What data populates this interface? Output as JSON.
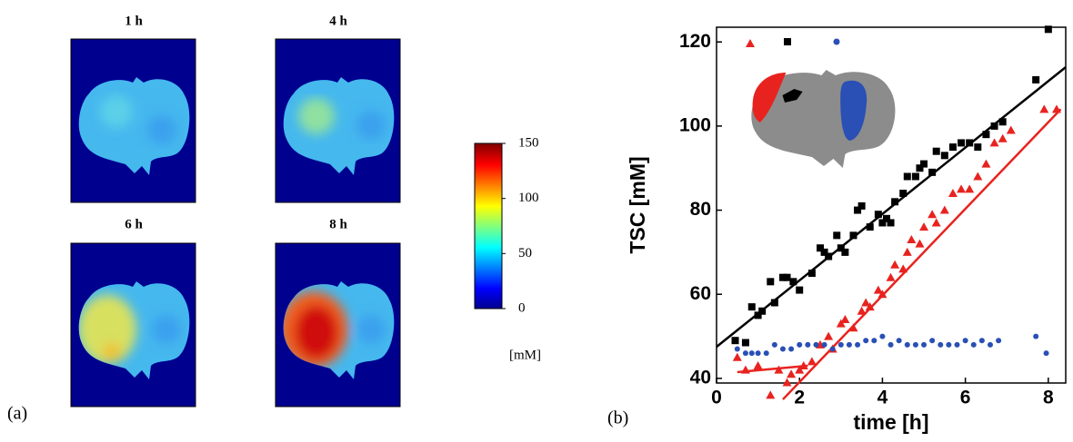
{
  "panel_a": {
    "label": "(a)",
    "images": [
      {
        "title": "1 h"
      },
      {
        "title": "4 h"
      },
      {
        "title": "6 h"
      },
      {
        "title": "8 h"
      }
    ],
    "colorbar": {
      "lim": [
        0,
        150
      ],
      "ticks": [
        0,
        50,
        100,
        150
      ],
      "label": "[mM]"
    }
  },
  "chart_data": {
    "type": "scatter",
    "panel_label": "(b)",
    "xlabel": "time [h]",
    "ylabel": "TSC [mM]",
    "xlim": [
      0,
      8.42
    ],
    "ylim": [
      38.9,
      123.5
    ],
    "xticks": [
      0,
      2,
      4,
      6,
      8
    ],
    "yticks": [
      40,
      60,
      80,
      100,
      120
    ],
    "series": [
      {
        "color": "#000000",
        "marker": "square",
        "x": [
          0.45,
          0.7,
          0.85,
          1.0,
          1.1,
          1.3,
          1.4,
          1.6,
          1.7,
          1.85,
          2.0,
          2.3,
          2.5,
          2.6,
          2.7,
          2.9,
          3.0,
          3.1,
          3.3,
          3.4,
          3.5,
          3.7,
          3.9,
          4.0,
          4.1,
          4.2,
          4.3,
          4.5,
          4.6,
          4.8,
          4.9,
          5.0,
          5.2,
          5.3,
          5.5,
          5.7,
          5.9,
          6.1,
          6.3,
          6.5,
          6.7,
          6.9,
          7.7,
          8.0
        ],
        "values": [
          49,
          48.5,
          57,
          55,
          56,
          63,
          58,
          64,
          64,
          63,
          61,
          65,
          71,
          70,
          69,
          74,
          71,
          70,
          74,
          80,
          81,
          76,
          79,
          77,
          78,
          77,
          82,
          84,
          88,
          88,
          90,
          91,
          89,
          94,
          93,
          95,
          96,
          96,
          95,
          98,
          100,
          101,
          111,
          123
        ]
      },
      {
        "color": "#e8231f",
        "marker": "triangle",
        "x": [
          0.5,
          0.7,
          1.0,
          1.3,
          1.5,
          1.7,
          1.8,
          2.0,
          2.1,
          2.3,
          2.5,
          2.7,
          2.8,
          3.0,
          3.1,
          3.3,
          3.5,
          3.6,
          3.7,
          3.9,
          4.0,
          4.2,
          4.3,
          4.5,
          4.6,
          4.7,
          4.9,
          5.0,
          5.2,
          5.3,
          5.5,
          5.7,
          5.9,
          6.1,
          6.3,
          6.5,
          6.7,
          6.9,
          7.1,
          7.9,
          8.2
        ],
        "values": [
          45,
          42,
          43,
          36,
          42,
          39,
          41,
          42,
          43,
          44,
          48,
          50,
          47,
          53,
          54,
          52,
          56,
          58,
          57,
          61,
          60,
          64,
          67,
          66,
          70,
          73,
          72,
          76,
          79,
          77,
          80,
          84,
          85,
          85,
          88,
          91,
          96,
          97,
          99,
          104,
          104
        ]
      },
      {
        "color": "#2a4fb5",
        "marker": "circle",
        "x": [
          0.5,
          0.7,
          0.85,
          1.0,
          1.2,
          1.4,
          1.6,
          1.8,
          2.0,
          2.2,
          2.4,
          2.6,
          2.8,
          3.0,
          3.2,
          3.4,
          3.6,
          3.8,
          4.0,
          4.2,
          4.4,
          4.6,
          4.8,
          5.0,
          5.2,
          5.4,
          5.6,
          5.8,
          6.0,
          6.2,
          6.4,
          6.6,
          6.8,
          7.7,
          7.95
        ],
        "values": [
          47,
          46,
          46,
          46,
          46,
          48,
          47,
          47,
          48,
          48,
          48,
          48,
          47,
          48,
          48,
          48,
          49,
          49,
          50,
          48,
          49,
          48,
          48,
          48,
          49,
          48,
          48,
          48,
          49,
          48,
          49,
          48,
          49,
          50,
          46
        ]
      }
    ],
    "fits": [
      {
        "color": "#000000",
        "x": [
          0,
          8.42
        ],
        "values": [
          47.5,
          114
        ]
      },
      {
        "color": "#e8231f",
        "x": [
          0.5,
          2.2
        ],
        "values": [
          41.5,
          43
        ]
      },
      {
        "color": "#e8231f",
        "x": [
          1.6,
          8.3
        ],
        "values": [
          35,
          104
        ]
      }
    ]
  }
}
